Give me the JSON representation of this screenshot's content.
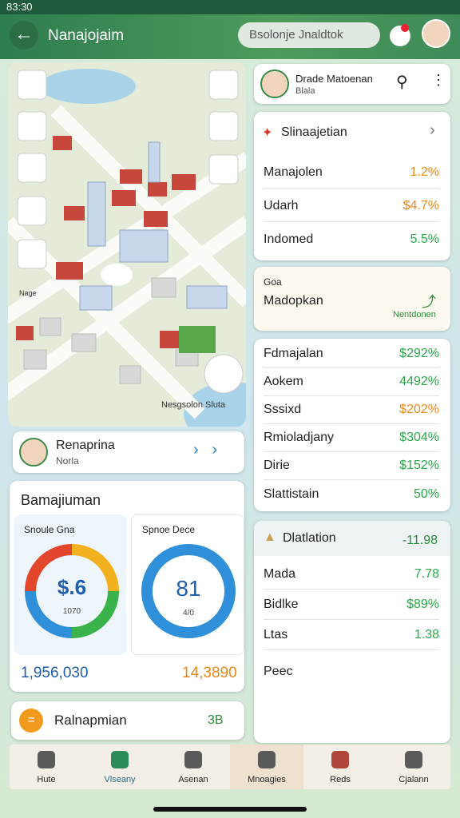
{
  "status_bar": {
    "time": "83:30"
  },
  "header": {
    "title": "Nanajojaim",
    "search": "Bsolonje Jnaldtok"
  },
  "map": {
    "labels": [
      "Nage",
      "Nesgsolon Sluta"
    ]
  },
  "profile_card": {
    "name": "Renaprina",
    "subtitle": "Norla"
  },
  "summary_card": {
    "title": "Bamajiuman",
    "gauges": [
      {
        "label": "Snoule Gna",
        "center": "$.6",
        "sub": "1070",
        "total": "1,956,030"
      },
      {
        "label": "Spnoe Dece",
        "center": "81",
        "sub": "4/0",
        "total": "14,3890"
      }
    ]
  },
  "bottom_card": {
    "label": "Ralnapmian",
    "value": "3B"
  },
  "user_card": {
    "name": "Drade Matoenan",
    "subtitle": "Blala"
  },
  "stats_card": {
    "title": "Slinaajetian",
    "rows": [
      [
        "Manajolen",
        "1.2%"
      ],
      [
        "Udarh",
        "$4.7%"
      ],
      [
        "Indomed",
        "5.5%"
      ]
    ]
  },
  "promo_card": {
    "tag": "Goa",
    "title": "Madopkan",
    "link": "Nentdonen"
  },
  "list_card": {
    "rows": [
      [
        "Fdmajalan",
        "$292%"
      ],
      [
        "Aokem",
        "4492%"
      ],
      [
        "Sssixd",
        "$202%"
      ],
      [
        "Rmioladjany",
        "$304%"
      ],
      [
        "Dirie",
        "$152%"
      ],
      [
        "Slattistain",
        "50%"
      ]
    ]
  },
  "detail_card": {
    "title": "Dlatlation",
    "value": "-11.98",
    "rows": [
      [
        "Mada",
        "7.78"
      ],
      [
        "Bidlke",
        "$89%"
      ],
      [
        "Ltas",
        "1.38"
      ],
      [
        "Peec"
      ]
    ]
  },
  "nav": {
    "items": [
      "Hute",
      "Vlseany",
      "Asenan",
      "Mnoagies",
      "Reds",
      "Cjalann"
    ]
  }
}
